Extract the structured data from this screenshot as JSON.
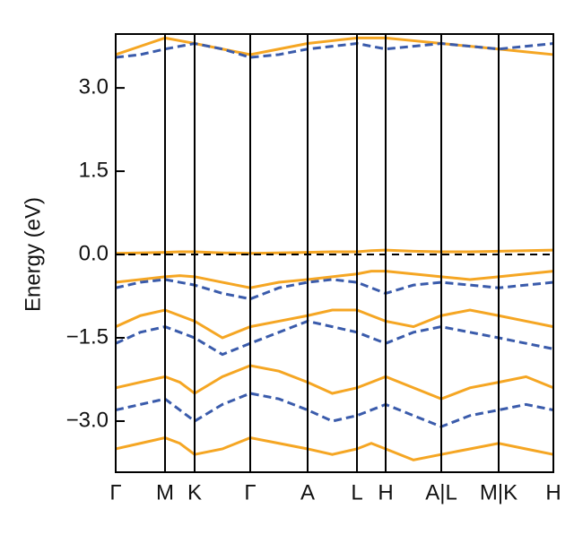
{
  "chart_data": {
    "type": "line",
    "y_label": "Energy (eV)",
    "x": [
      0,
      27.5,
      55,
      71.5,
      88,
      119,
      150,
      182,
      214,
      241.5,
      269,
      285,
      301,
      332,
      363,
      395,
      427,
      457.5,
      488
    ],
    "xlim": [
      0,
      488
    ],
    "xticks": [
      {
        "value": 0,
        "label": "Γ"
      },
      {
        "value": 55,
        "label": "M"
      },
      {
        "value": 88,
        "label": "K"
      },
      {
        "value": 150,
        "label": "Γ"
      },
      {
        "value": 214,
        "label": "A"
      },
      {
        "value": 269,
        "label": "L"
      },
      {
        "value": 301,
        "label": "H"
      },
      {
        "value": 363,
        "label": "A|L"
      },
      {
        "value": 427,
        "label": "M|K"
      },
      {
        "value": 488,
        "label": "H"
      }
    ],
    "ylim": [
      -3.92,
      3.97
    ],
    "yticks": [
      {
        "value": -3,
        "label": "−3.0"
      },
      {
        "value": -1.5,
        "label": "−1.5"
      },
      {
        "value": 0,
        "label": "0.0"
      },
      1.5,
      {
        "value": 3,
        "label": "3.0"
      }
    ],
    "xgrid": true,
    "hline": 0,
    "series": [
      {
        "color": "#f5a623",
        "dash": false,
        "values": [
          0.02,
          0.03,
          0.04,
          0.05,
          0.05,
          0.03,
          0.02,
          0.03,
          0.04,
          0.05,
          0.05,
          0.07,
          0.08,
          0.06,
          0.05,
          0.05,
          0.06,
          0.07,
          0.08
        ]
      },
      {
        "color": "#f5a623",
        "dash": false,
        "values": [
          -0.5,
          -0.45,
          -0.4,
          -0.38,
          -0.4,
          -0.5,
          -0.6,
          -0.5,
          -0.45,
          -0.4,
          -0.35,
          -0.3,
          -0.3,
          -0.35,
          -0.4,
          -0.45,
          -0.4,
          -0.35,
          -0.3
        ]
      },
      {
        "color": "#f5a623",
        "dash": false,
        "values": [
          -1.3,
          -1.1,
          -1.0,
          -1.1,
          -1.2,
          -1.5,
          -1.3,
          -1.2,
          -1.1,
          -1.0,
          -1.0,
          -1.1,
          -1.2,
          -1.3,
          -1.1,
          -1.0,
          -1.1,
          -1.2,
          -1.3
        ]
      },
      {
        "color": "#f5a623",
        "dash": false,
        "values": [
          -2.4,
          -2.3,
          -2.2,
          -2.3,
          -2.5,
          -2.2,
          -2.0,
          -2.1,
          -2.3,
          -2.5,
          -2.4,
          -2.3,
          -2.2,
          -2.4,
          -2.6,
          -2.4,
          -2.3,
          -2.2,
          -2.4
        ]
      },
      {
        "color": "#f5a623",
        "dash": false,
        "values": [
          -3.5,
          -3.4,
          -3.3,
          -3.4,
          -3.6,
          -3.5,
          -3.3,
          -3.4,
          -3.5,
          -3.6,
          -3.5,
          -3.4,
          -3.5,
          -3.7,
          -3.6,
          -3.5,
          -3.4,
          -3.5,
          -3.6
        ]
      },
      {
        "color": "#f5a623",
        "dash": false,
        "values": [
          3.6,
          3.75,
          3.9,
          3.85,
          3.8,
          3.7,
          3.6,
          3.7,
          3.8,
          3.85,
          3.9,
          3.9,
          3.9,
          3.85,
          3.8,
          3.75,
          3.7,
          3.65,
          3.6
        ]
      },
      {
        "color": "#3a5bab",
        "dash": true,
        "values": [
          -0.6,
          -0.5,
          -0.45,
          -0.5,
          -0.55,
          -0.7,
          -0.8,
          -0.6,
          -0.5,
          -0.45,
          -0.5,
          -0.6,
          -0.7,
          -0.55,
          -0.5,
          -0.55,
          -0.6,
          -0.55,
          -0.5
        ]
      },
      {
        "color": "#3a5bab",
        "dash": true,
        "values": [
          -1.6,
          -1.4,
          -1.3,
          -1.4,
          -1.5,
          -1.8,
          -1.6,
          -1.4,
          -1.2,
          -1.3,
          -1.4,
          -1.5,
          -1.6,
          -1.4,
          -1.3,
          -1.4,
          -1.5,
          -1.6,
          -1.7
        ]
      },
      {
        "color": "#3a5bab",
        "dash": true,
        "values": [
          -2.8,
          -2.7,
          -2.6,
          -2.8,
          -3.0,
          -2.7,
          -2.5,
          -2.6,
          -2.8,
          -3.0,
          -2.9,
          -2.8,
          -2.7,
          -2.9,
          -3.1,
          -2.9,
          -2.8,
          -2.7,
          -2.8
        ]
      },
      {
        "color": "#3a5bab",
        "dash": true,
        "values": [
          3.55,
          3.6,
          3.7,
          3.75,
          3.8,
          3.7,
          3.55,
          3.6,
          3.7,
          3.75,
          3.8,
          3.75,
          3.7,
          3.75,
          3.8,
          3.75,
          3.7,
          3.75,
          3.8
        ]
      }
    ]
  }
}
